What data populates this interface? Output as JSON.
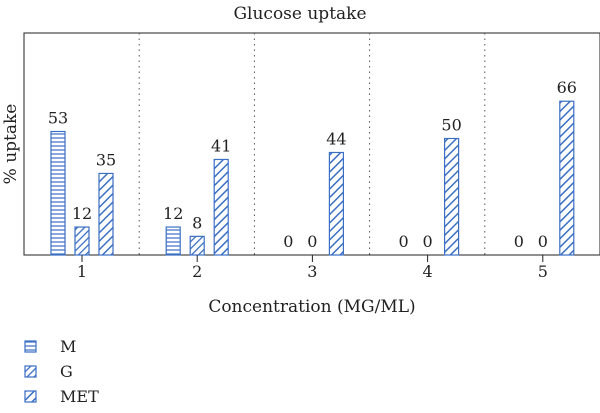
{
  "chart_data": {
    "type": "bar",
    "title": "Glucose uptake",
    "xlabel": "Concentration (MG/ML)",
    "ylabel": "% uptake",
    "categories": [
      "1",
      "2",
      "3",
      "4",
      "5"
    ],
    "ylim": [
      0,
      70
    ],
    "series": [
      {
        "name": "M",
        "pattern": "horizontal-lines",
        "values": [
          53,
          12,
          0,
          0,
          0
        ]
      },
      {
        "name": "G",
        "pattern": "diagonal-dense",
        "values": [
          12,
          8,
          0,
          0,
          0
        ]
      },
      {
        "name": "MET",
        "pattern": "diagonal-wide",
        "values": [
          35,
          41,
          44,
          50,
          66
        ]
      }
    ],
    "group_separators": "dotted",
    "legend_position": "bottom-left",
    "colors": {
      "bar": "#3a6fc4",
      "axis": "#222222"
    }
  }
}
